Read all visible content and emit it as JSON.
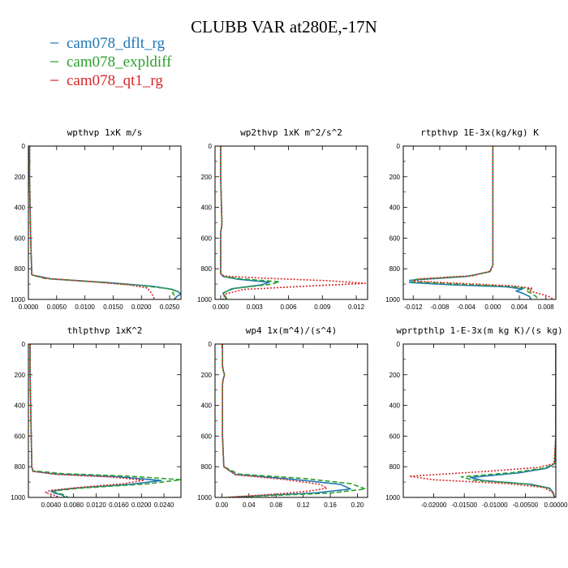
{
  "title": "CLUBB VAR at280E,-17N",
  "legend": [
    {
      "label": "cam078_dflt_rg",
      "color": "#1f77b4"
    },
    {
      "label": "cam078_expldiff",
      "color": "#2ca02c"
    },
    {
      "label": "cam078_qt1_rg",
      "color": "#d62728"
    }
  ],
  "chart_data": [
    {
      "type": "line",
      "title": "wpthvp   1xK m/s",
      "xlim": [
        0,
        0.027
      ],
      "ylim": [
        1000,
        0
      ],
      "xticks": [
        0,
        0.005,
        0.01,
        0.015,
        0.02,
        0.025
      ],
      "xticklabels": [
        "0.0000",
        "0.0050",
        "0.0100",
        "0.0150",
        "0.0200",
        "0.0250"
      ],
      "yticks": [
        0,
        200,
        400,
        600,
        800,
        1000
      ],
      "series": [
        {
          "name": "cam078_dflt_rg",
          "x": [
            0.0002,
            0.0002,
            0.0003,
            0.0004,
            0.0006,
            0.004,
            0.014,
            0.022,
            0.0255,
            0.0265,
            0.027,
            0.0265,
            0.026,
            0.0258
          ],
          "y": [
            0,
            200,
            400,
            600,
            840,
            866,
            890,
            914,
            935,
            950,
            964,
            975,
            990,
            1000
          ]
        },
        {
          "name": "cam078_expldiff",
          "x": [
            0.0002,
            0.0002,
            0.0003,
            0.0004,
            0.0006,
            0.003,
            0.012,
            0.02,
            0.0248,
            0.0262,
            0.0255,
            0.0258,
            0.026,
            0.026
          ],
          "y": [
            0,
            200,
            400,
            600,
            840,
            864,
            886,
            910,
            930,
            945,
            958,
            972,
            988,
            1000
          ]
        },
        {
          "name": "cam078_qt1_rg",
          "x": [
            0.0002,
            0.0002,
            0.0003,
            0.0004,
            0.0006,
            0.003,
            0.011,
            0.018,
            0.021,
            0.0215,
            0.0218,
            0.022,
            0.0222,
            0.0223
          ],
          "y": [
            0,
            200,
            400,
            600,
            840,
            862,
            884,
            906,
            925,
            945,
            960,
            975,
            990,
            1000
          ]
        }
      ]
    },
    {
      "type": "line",
      "title": "wp2thvp   1xK m^2/s^2",
      "xlim": [
        -0.0005,
        0.013
      ],
      "ylim": [
        1000,
        0
      ],
      "xticks": [
        0,
        0.003,
        0.006,
        0.009,
        0.012
      ],
      "xticklabels": [
        "0.000",
        "0.003",
        "0.006",
        "0.009",
        "0.012"
      ],
      "yticks": [
        0,
        200,
        400,
        600,
        800,
        1000
      ],
      "series": [
        {
          "name": "cam078_dflt_rg",
          "x": [
            0,
            0,
            0.0001,
            0.0001,
            0,
            0,
            0,
            0.0002,
            0.0015,
            0.0043,
            0.0036,
            0.001,
            0.0002,
            0.0005
          ],
          "y": [
            0,
            200,
            480,
            520,
            560,
            700,
            830,
            850,
            868,
            888,
            905,
            930,
            960,
            1000
          ]
        },
        {
          "name": "cam078_expldiff",
          "x": [
            0,
            0,
            0.0001,
            0.0001,
            0,
            0,
            0,
            0.0002,
            0.0018,
            0.0052,
            0.0044,
            0.0012,
            0.0002,
            0.0006
          ],
          "y": [
            0,
            200,
            480,
            520,
            560,
            700,
            830,
            850,
            866,
            885,
            902,
            928,
            958,
            1000
          ]
        },
        {
          "name": "cam078_qt1_rg",
          "x": [
            0,
            0,
            0.0001,
            0.0001,
            0,
            0,
            0,
            0.0003,
            0.004,
            0.0095,
            0.0128,
            0.0085,
            0.002,
            0.0004,
            0.0002
          ],
          "y": [
            0,
            200,
            480,
            520,
            560,
            700,
            830,
            848,
            862,
            878,
            895,
            910,
            935,
            965,
            1000
          ]
        }
      ]
    },
    {
      "type": "line",
      "title": "rtpthvp   1E-3x(kg/kg) K",
      "xlim": [
        -0.0135,
        0.0095
      ],
      "ylim": [
        1000,
        0
      ],
      "xticks": [
        -0.012,
        -0.008,
        -0.004,
        0,
        0.004,
        0.008
      ],
      "xticklabels": [
        "-0.012",
        "-0.008",
        "-0.004",
        "0.000",
        "0.004",
        "0.008"
      ],
      "yticks": [
        0,
        200,
        400,
        600,
        800,
        1000
      ],
      "series": [
        {
          "name": "cam078_dflt_rg",
          "x": [
            0,
            0,
            0,
            0,
            0,
            -0.0005,
            -0.004,
            -0.0125,
            -0.0125,
            -0.006,
            0.002,
            0.0045,
            0.0035,
            0.0045,
            0.0055,
            0.0058
          ],
          "y": [
            0,
            200,
            400,
            600,
            780,
            820,
            850,
            875,
            890,
            905,
            918,
            932,
            945,
            960,
            980,
            1000
          ]
        },
        {
          "name": "cam078_expldiff",
          "x": [
            0,
            0,
            0,
            0,
            0,
            -0.0004,
            -0.0035,
            -0.0118,
            -0.0122,
            -0.0055,
            0.0025,
            0.0055,
            0.005,
            0.0058,
            0.0065,
            0.0068
          ],
          "y": [
            0,
            200,
            400,
            600,
            780,
            818,
            848,
            870,
            885,
            900,
            915,
            930,
            945,
            960,
            980,
            1000
          ]
        },
        {
          "name": "cam078_qt1_rg",
          "x": [
            0,
            0,
            0,
            0,
            0,
            -0.0004,
            -0.003,
            -0.011,
            -0.012,
            -0.0045,
            0.003,
            0.006,
            0.0055,
            0.007,
            0.0085,
            0.0092
          ],
          "y": [
            0,
            200,
            400,
            600,
            780,
            816,
            845,
            866,
            880,
            896,
            912,
            928,
            945,
            962,
            982,
            1000
          ]
        }
      ]
    },
    {
      "type": "line",
      "title": "thlpthvp   1xK^2",
      "xlim": [
        0,
        0.027
      ],
      "ylim": [
        1000,
        0
      ],
      "xticks": [
        0.004,
        0.008,
        0.012,
        0.016,
        0.02,
        0.024
      ],
      "xticklabels": [
        "0.0040",
        "0.0080",
        "0.0120",
        "0.0160",
        "0.0200",
        "0.0240"
      ],
      "yticks": [
        0,
        200,
        400,
        600,
        800,
        1000
      ],
      "series": [
        {
          "name": "cam078_dflt_rg",
          "x": [
            0.0003,
            0.0003,
            0.0004,
            0.0005,
            0.0006,
            0.0006,
            0.0008,
            0.005,
            0.016,
            0.0235,
            0.018,
            0.008,
            0.004,
            0.0045,
            0.006,
            0.0065
          ],
          "y": [
            0,
            200,
            400,
            600,
            780,
            800,
            830,
            848,
            866,
            890,
            915,
            940,
            958,
            970,
            985,
            1000
          ]
        },
        {
          "name": "cam078_expldiff",
          "x": [
            0.0003,
            0.0003,
            0.0004,
            0.0005,
            0.0006,
            0.0006,
            0.0008,
            0.006,
            0.018,
            0.027,
            0.021,
            0.009,
            0.0045,
            0.005,
            0.0065,
            0.007
          ],
          "y": [
            0,
            200,
            400,
            600,
            780,
            798,
            826,
            845,
            862,
            885,
            912,
            940,
            958,
            970,
            985,
            1000
          ]
        },
        {
          "name": "cam078_qt1_rg",
          "x": [
            0.0003,
            0.0003,
            0.0004,
            0.0005,
            0.0006,
            0.0006,
            0.0008,
            0.005,
            0.015,
            0.0205,
            0.017,
            0.009,
            0.0038,
            0.003,
            0.0045,
            0.0055
          ],
          "y": [
            0,
            200,
            400,
            600,
            780,
            802,
            830,
            850,
            868,
            888,
            910,
            935,
            955,
            968,
            985,
            1000
          ]
        }
      ]
    },
    {
      "type": "line",
      "title": "wp4   1x(m^4)/(s^4)",
      "xlim": [
        -0.01,
        0.215
      ],
      "ylim": [
        1000,
        0
      ],
      "xticks": [
        0,
        0.04,
        0.08,
        0.12,
        0.16,
        0.2
      ],
      "xticklabels": [
        "0.00",
        "0.04",
        "0.08",
        "0.12",
        "0.16",
        "0.20"
      ],
      "yticks": [
        0,
        200,
        400,
        600,
        800,
        1000
      ],
      "series": [
        {
          "name": "cam078_dflt_rg",
          "x": [
            0.001,
            0.001,
            0.002,
            0.004,
            0.002,
            0.001,
            0.001,
            0.001,
            0.003,
            0.02,
            0.1,
            0.175,
            0.19,
            0.14,
            0.05,
            0.01
          ],
          "y": [
            0,
            140,
            170,
            200,
            230,
            260,
            400,
            600,
            800,
            850,
            880,
            915,
            945,
            970,
            990,
            1000
          ]
        },
        {
          "name": "cam078_expldiff",
          "x": [
            0.001,
            0.001,
            0.002,
            0.004,
            0.002,
            0.001,
            0.001,
            0.001,
            0.003,
            0.025,
            0.12,
            0.19,
            0.212,
            0.16,
            0.06,
            0.012
          ],
          "y": [
            0,
            140,
            170,
            200,
            230,
            260,
            400,
            600,
            800,
            848,
            876,
            910,
            945,
            972,
            990,
            1000
          ]
        },
        {
          "name": "cam078_qt1_rg",
          "x": [
            0.001,
            0.001,
            0.002,
            0.004,
            0.002,
            0.001,
            0.001,
            0.001,
            0.003,
            0.02,
            0.09,
            0.145,
            0.155,
            0.13,
            0.09,
            0.04,
            0.005
          ],
          "y": [
            0,
            140,
            170,
            200,
            230,
            260,
            400,
            600,
            800,
            852,
            882,
            915,
            940,
            958,
            975,
            990,
            1000
          ]
        }
      ]
    },
    {
      "type": "line",
      "title": "wprtpthlp   1-E-3x(m kg K)/(s kg)",
      "xlim": [
        -0.025,
        0
      ],
      "ylim": [
        1000,
        0
      ],
      "xticks": [
        -0.02,
        -0.015,
        -0.01,
        -0.005,
        0
      ],
      "xticklabels": [
        "-0.02000",
        "-0.01500",
        "-0.01000",
        "-0.00500",
        "0.00000"
      ],
      "yticks": [
        0,
        200,
        400,
        600,
        800,
        1000
      ],
      "series": [
        {
          "name": "cam078_dflt_rg",
          "x": [
            0,
            0,
            0,
            0,
            -0.0002,
            -0.0015,
            -0.006,
            -0.014,
            -0.012,
            -0.004,
            -0.001,
            -0.0004,
            -0.0002
          ],
          "y": [
            0,
            200,
            400,
            600,
            780,
            810,
            840,
            870,
            890,
            915,
            940,
            970,
            1000
          ]
        },
        {
          "name": "cam078_expldiff",
          "x": [
            0,
            0,
            0,
            0,
            -0.0002,
            -0.0018,
            -0.007,
            -0.0155,
            -0.0135,
            -0.005,
            -0.0012,
            -0.0005,
            -0.0002
          ],
          "y": [
            0,
            200,
            400,
            600,
            780,
            808,
            838,
            866,
            888,
            912,
            938,
            968,
            1000
          ]
        },
        {
          "name": "cam078_qt1_rg",
          "x": [
            0,
            0,
            0,
            0,
            -0.0003,
            -0.003,
            -0.012,
            -0.024,
            -0.02,
            -0.008,
            -0.002,
            -0.0006,
            -0.0002
          ],
          "y": [
            0,
            200,
            400,
            600,
            780,
            805,
            832,
            862,
            885,
            910,
            935,
            965,
            1000
          ]
        }
      ]
    }
  ]
}
